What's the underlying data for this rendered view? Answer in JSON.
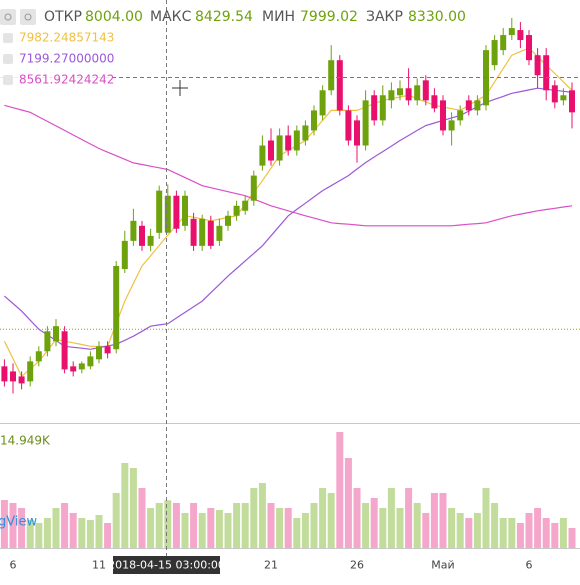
{
  "chart_data": {
    "type": "candlestick",
    "ohlc_readout": {
      "labels": [
        "ОТКР",
        "МАКС",
        "МИН",
        "ЗАКР"
      ],
      "values": [
        8004,
        8429.54,
        7999.02,
        8330
      ],
      "value_labels": [
        "8004.00",
        "8429.54",
        "7999.02",
        "8330.00"
      ]
    },
    "categories": [
      null,
      "6",
      null,
      null,
      null,
      null,
      null,
      null,
      null,
      null,
      null,
      "11",
      null,
      null,
      null,
      null,
      null,
      null,
      null,
      null,
      null,
      null,
      null,
      null,
      null,
      null,
      null,
      null,
      null,
      null,
      null,
      "21",
      null,
      null,
      null,
      null,
      null,
      null,
      null,
      null,
      null,
      "26",
      null,
      null,
      null,
      null,
      null,
      null,
      null,
      null,
      null,
      "Май",
      null,
      null,
      null,
      null,
      null,
      null,
      null,
      null,
      null,
      "6",
      null,
      null,
      null,
      null,
      null
    ],
    "open": [
      6822,
      6777,
      6733,
      6689,
      6866,
      6955,
      7044,
      7132,
      6822,
      6795,
      6822,
      6884,
      6999,
      6973,
      7682,
      7931,
      8064,
      7887,
      8002,
      8004,
      8330,
      8064,
      8126,
      7887,
      8108,
      7931,
      8064,
      8153,
      8197,
      8286,
      8596,
      8818,
      8641,
      8863,
      8730,
      8818,
      8907,
      9040,
      9262,
      9528,
      9084,
      8996,
      8774,
      9218,
      8996,
      9173,
      9218,
      9280,
      9173,
      9350,
      9218,
      9173,
      8907,
      8996,
      9173,
      9084,
      9129,
      9484,
      9617,
      9750,
      9794,
      9750,
      9572,
      9572,
      9306,
      9173,
      9262
    ],
    "high": [
      6884,
      6848,
      6777,
      6910,
      6999,
      7177,
      7239,
      7177,
      6866,
      6866,
      6955,
      7044,
      7044,
      7753,
      8020,
      8215,
      8108,
      8038,
      8419,
      8429.54,
      8375,
      8375,
      8179,
      8162,
      8153,
      8126,
      8197,
      8286,
      8330,
      8552,
      8863,
      8925,
      8925,
      8951,
      8951,
      8996,
      9129,
      9306,
      9661,
      9572,
      9129,
      9040,
      9262,
      9262,
      9306,
      9332,
      9350,
      9457,
      9368,
      9395,
      9280,
      9218,
      9067,
      9129,
      9218,
      9218,
      9661,
      9750,
      9812,
      9901,
      9865,
      9794,
      9635,
      9635,
      9350,
      9280,
      9332
    ],
    "low": [
      6644,
      6582,
      6618,
      6644,
      6822,
      6910,
      6999,
      6760,
      6733,
      6760,
      6795,
      6848,
      6893,
      6937,
      7647,
      7887,
      7842,
      7842,
      7949,
      7999.02,
      8002,
      8020,
      7842,
      7842,
      7860,
      7887,
      8020,
      8108,
      8162,
      8241,
      8552,
      8596,
      8596,
      8685,
      8685,
      8774,
      8863,
      8996,
      9218,
      9040,
      8774,
      8623,
      8730,
      8951,
      8951,
      9102,
      9173,
      9129,
      9129,
      9129,
      9067,
      8863,
      8774,
      8951,
      9040,
      9040,
      9084,
      9439,
      9572,
      9706,
      9635,
      9484,
      9280,
      9173,
      9102,
      9129,
      8925
    ],
    "close": [
      6689,
      6689,
      6671,
      6866,
      6955,
      7132,
      7177,
      6795,
      6777,
      6848,
      6910,
      6999,
      6937,
      7709,
      7931,
      8108,
      7887,
      7975,
      8375,
      8330,
      8038,
      8330,
      7887,
      8126,
      7887,
      8064,
      8153,
      8241,
      8286,
      8508,
      8774,
      8641,
      8863,
      8730,
      8907,
      8951,
      9084,
      9262,
      9528,
      9084,
      8818,
      8774,
      9173,
      8996,
      9218,
      9262,
      9280,
      9173,
      9306,
      9173,
      9102,
      8907,
      8996,
      9084,
      9084,
      9173,
      9617,
      9706,
      9750,
      9812,
      9706,
      9528,
      9395,
      9262,
      9155,
      9218,
      9067
    ],
    "up_color": "#6ea20c",
    "down_color": "#e8106c",
    "ylim": [
      6330,
      10060
    ],
    "price_line": {
      "value": 7150,
      "color": "#9aa800"
    },
    "series": [
      {
        "color": "#f0c040",
        "legend_value": 7982.24857143,
        "legend_label": "7982.24857143",
        "values": [
          7044,
          6890,
          6733,
          6800,
          6866,
          6960,
          7061,
          7045,
          7030,
          7015,
          6999,
          6999,
          6999,
          7200,
          7399,
          7555,
          7709,
          7800,
          7890,
          7982.24857143,
          8070,
          8153,
          8140,
          8125,
          8108,
          8123,
          8138,
          8153,
          8256,
          8360,
          8463,
          8574,
          8685,
          8730,
          8774,
          8818,
          8907,
          8996,
          9084,
          9084,
          9084,
          9084,
          9114,
          9144,
          9173,
          9188,
          9203,
          9218,
          9188,
          9159,
          9129,
          9114,
          9099,
          9084,
          9129,
          9174,
          9218,
          9336,
          9454,
          9572,
          9604,
          9635,
          9560,
          9484,
          9410,
          9336,
          9262
        ]
      },
      {
        "color": "#9b59d9",
        "legend_value": 7199.27,
        "legend_label": "7199.27000000",
        "values": [
          7443,
          7377,
          7310,
          7230,
          7150,
          7100,
          7050,
          6999,
          6990,
          6982,
          6973,
          6988,
          7002,
          7017,
          7052,
          7088,
          7132,
          7177,
          7188,
          7199.27,
          7249,
          7299,
          7349,
          7399,
          7473,
          7546,
          7620,
          7687,
          7754,
          7820,
          7887,
          7976,
          8064,
          8153,
          8209,
          8264,
          8320,
          8375,
          8419,
          8464,
          8508,
          8566,
          8623,
          8672,
          8720,
          8769,
          8818,
          8862,
          8907,
          8951,
          8973,
          8996,
          9018,
          9040,
          9078,
          9117,
          9155,
          9182,
          9208,
          9235,
          9250,
          9265,
          9280,
          9271,
          9262,
          9253,
          9244
        ]
      },
      {
        "color": "#d94fc7",
        "legend_value": 8561.92424242,
        "legend_label": "8561.92424242",
        "values": [
          9129,
          9108,
          9088,
          9067,
          9027,
          8987,
          8947,
          8907,
          8867,
          8827,
          8787,
          8747,
          8715,
          8684,
          8652,
          8620,
          8606,
          8591,
          8577,
          8561.92424242,
          8526,
          8490,
          8455,
          8419,
          8401,
          8383,
          8366,
          8348,
          8330,
          8300,
          8271,
          8241,
          8219,
          8197,
          8175,
          8153,
          8132,
          8112,
          8091,
          8084,
          8078,
          8071,
          8064,
          8064,
          8064,
          8064,
          8064,
          8064,
          8064,
          8064,
          8064,
          8064,
          8064,
          8071,
          8078,
          8084,
          8091,
          8112,
          8132,
          8153,
          8168,
          8182,
          8197,
          8208,
          8219,
          8230,
          8241
        ]
      }
    ],
    "volume": {
      "readout": "14.949K",
      "ylim": [
        0,
        38500
      ],
      "up_color": "#c2dc9c",
      "down_color": "#f4a6cb",
      "values": [
        15020,
        14090,
        12520,
        8760,
        7830,
        9390,
        12520,
        14090,
        10960,
        9390,
        8760,
        10330,
        7830,
        17220,
        26610,
        25040,
        18780,
        12520,
        14090,
        14949,
        14090,
        10960,
        14090,
        10960,
        12520,
        11890,
        10960,
        14090,
        14090,
        18780,
        20350,
        14090,
        12520,
        12520,
        9390,
        10960,
        14090,
        18780,
        17220,
        36310,
        28170,
        18780,
        14090,
        15650,
        12520,
        18780,
        12520,
        18780,
        14090,
        10960,
        17220,
        17220,
        12520,
        10960,
        9390,
        10960,
        18780,
        14090,
        9390,
        9390,
        7830,
        10960,
        12520,
        9390,
        7830,
        9390,
        6260
      ]
    },
    "crosshair_label": "2018-04-15 03:00:00",
    "watermark": "gView"
  }
}
